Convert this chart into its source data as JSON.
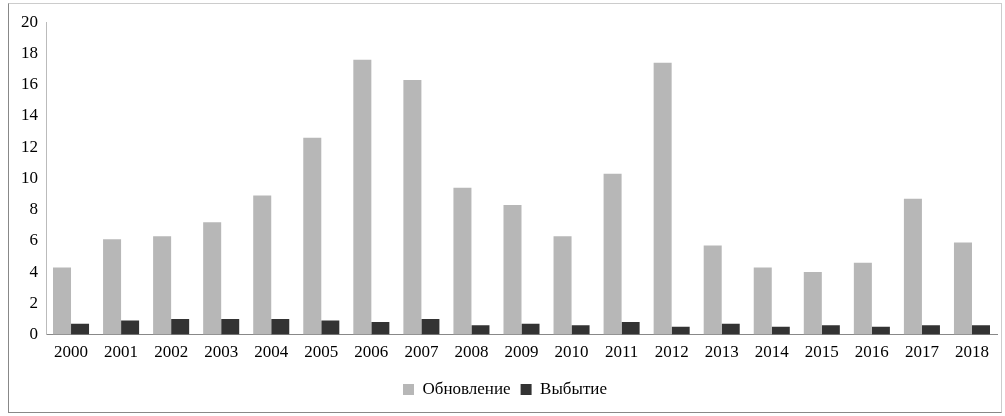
{
  "chart_data": {
    "type": "bar",
    "categories": [
      "2000",
      "2001",
      "2002",
      "2003",
      "2004",
      "2005",
      "2006",
      "2007",
      "2008",
      "2009",
      "2010",
      "2011",
      "2012",
      "2013",
      "2014",
      "2015",
      "2016",
      "2017",
      "2018"
    ],
    "series": [
      {
        "name": "Обновление",
        "color": "#b7b7b7",
        "values": [
          4.3,
          6.1,
          6.3,
          7.2,
          8.9,
          12.6,
          17.6,
          16.3,
          9.4,
          8.3,
          6.3,
          10.3,
          17.4,
          5.7,
          4.3,
          4.0,
          4.6,
          8.7,
          5.9
        ]
      },
      {
        "name": "Выбытие",
        "color": "#333333",
        "values": [
          0.7,
          0.9,
          1.0,
          1.0,
          1.0,
          0.9,
          0.8,
          1.0,
          0.6,
          0.7,
          0.6,
          0.8,
          0.5,
          0.7,
          0.5,
          0.6,
          0.5,
          0.6,
          0.6
        ]
      }
    ],
    "ylim": [
      0,
      20
    ],
    "yticks": [
      0,
      2,
      4,
      6,
      8,
      10,
      12,
      14,
      16,
      18,
      20
    ],
    "grid": false,
    "legend": "bottom"
  }
}
